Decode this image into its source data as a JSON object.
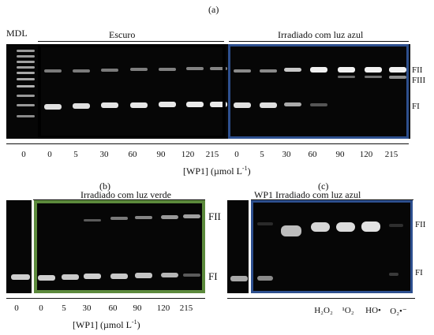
{
  "panel_a": {
    "label": "(a)",
    "marker": "MDL",
    "group_dark": "Escuro",
    "group_blue": "Irradiado com luz azul",
    "band_labels": [
      "FII",
      "FIII",
      "FI"
    ],
    "lane_labels": [
      "0",
      "0",
      "5",
      "30",
      "60",
      "90",
      "120",
      "215",
      "0",
      "5",
      "30",
      "60",
      "90",
      "120",
      "215"
    ],
    "axis_label_prefix": "[WP1] (µmol L",
    "axis_label_exp": "-1",
    "axis_label_suffix": ")",
    "colors": {
      "dark_frame": "#000000",
      "blue_frame": "#2d4f8e"
    }
  },
  "panel_b": {
    "label": "(b)",
    "group": "Irradiado com luz verde",
    "band_labels": [
      "FII",
      "FI"
    ],
    "lane_labels": [
      "0",
      "0",
      "5",
      "30",
      "60",
      "90",
      "120",
      "215"
    ],
    "axis_label_prefix": "[WP1] (µmol L",
    "axis_label_exp": "-1",
    "axis_label_suffix": ")",
    "colors": {
      "frame": "#5c8a3c"
    }
  },
  "panel_c": {
    "label": "(c)",
    "group": "WP1 Irradiado com luz azul",
    "band_labels": [
      "FII",
      "FI"
    ],
    "lane_labels": [
      "H₂O₂",
      "¹O₂",
      "HO•",
      "O₂•⁻"
    ],
    "colors": {
      "frame": "#2d4f8e"
    }
  }
}
